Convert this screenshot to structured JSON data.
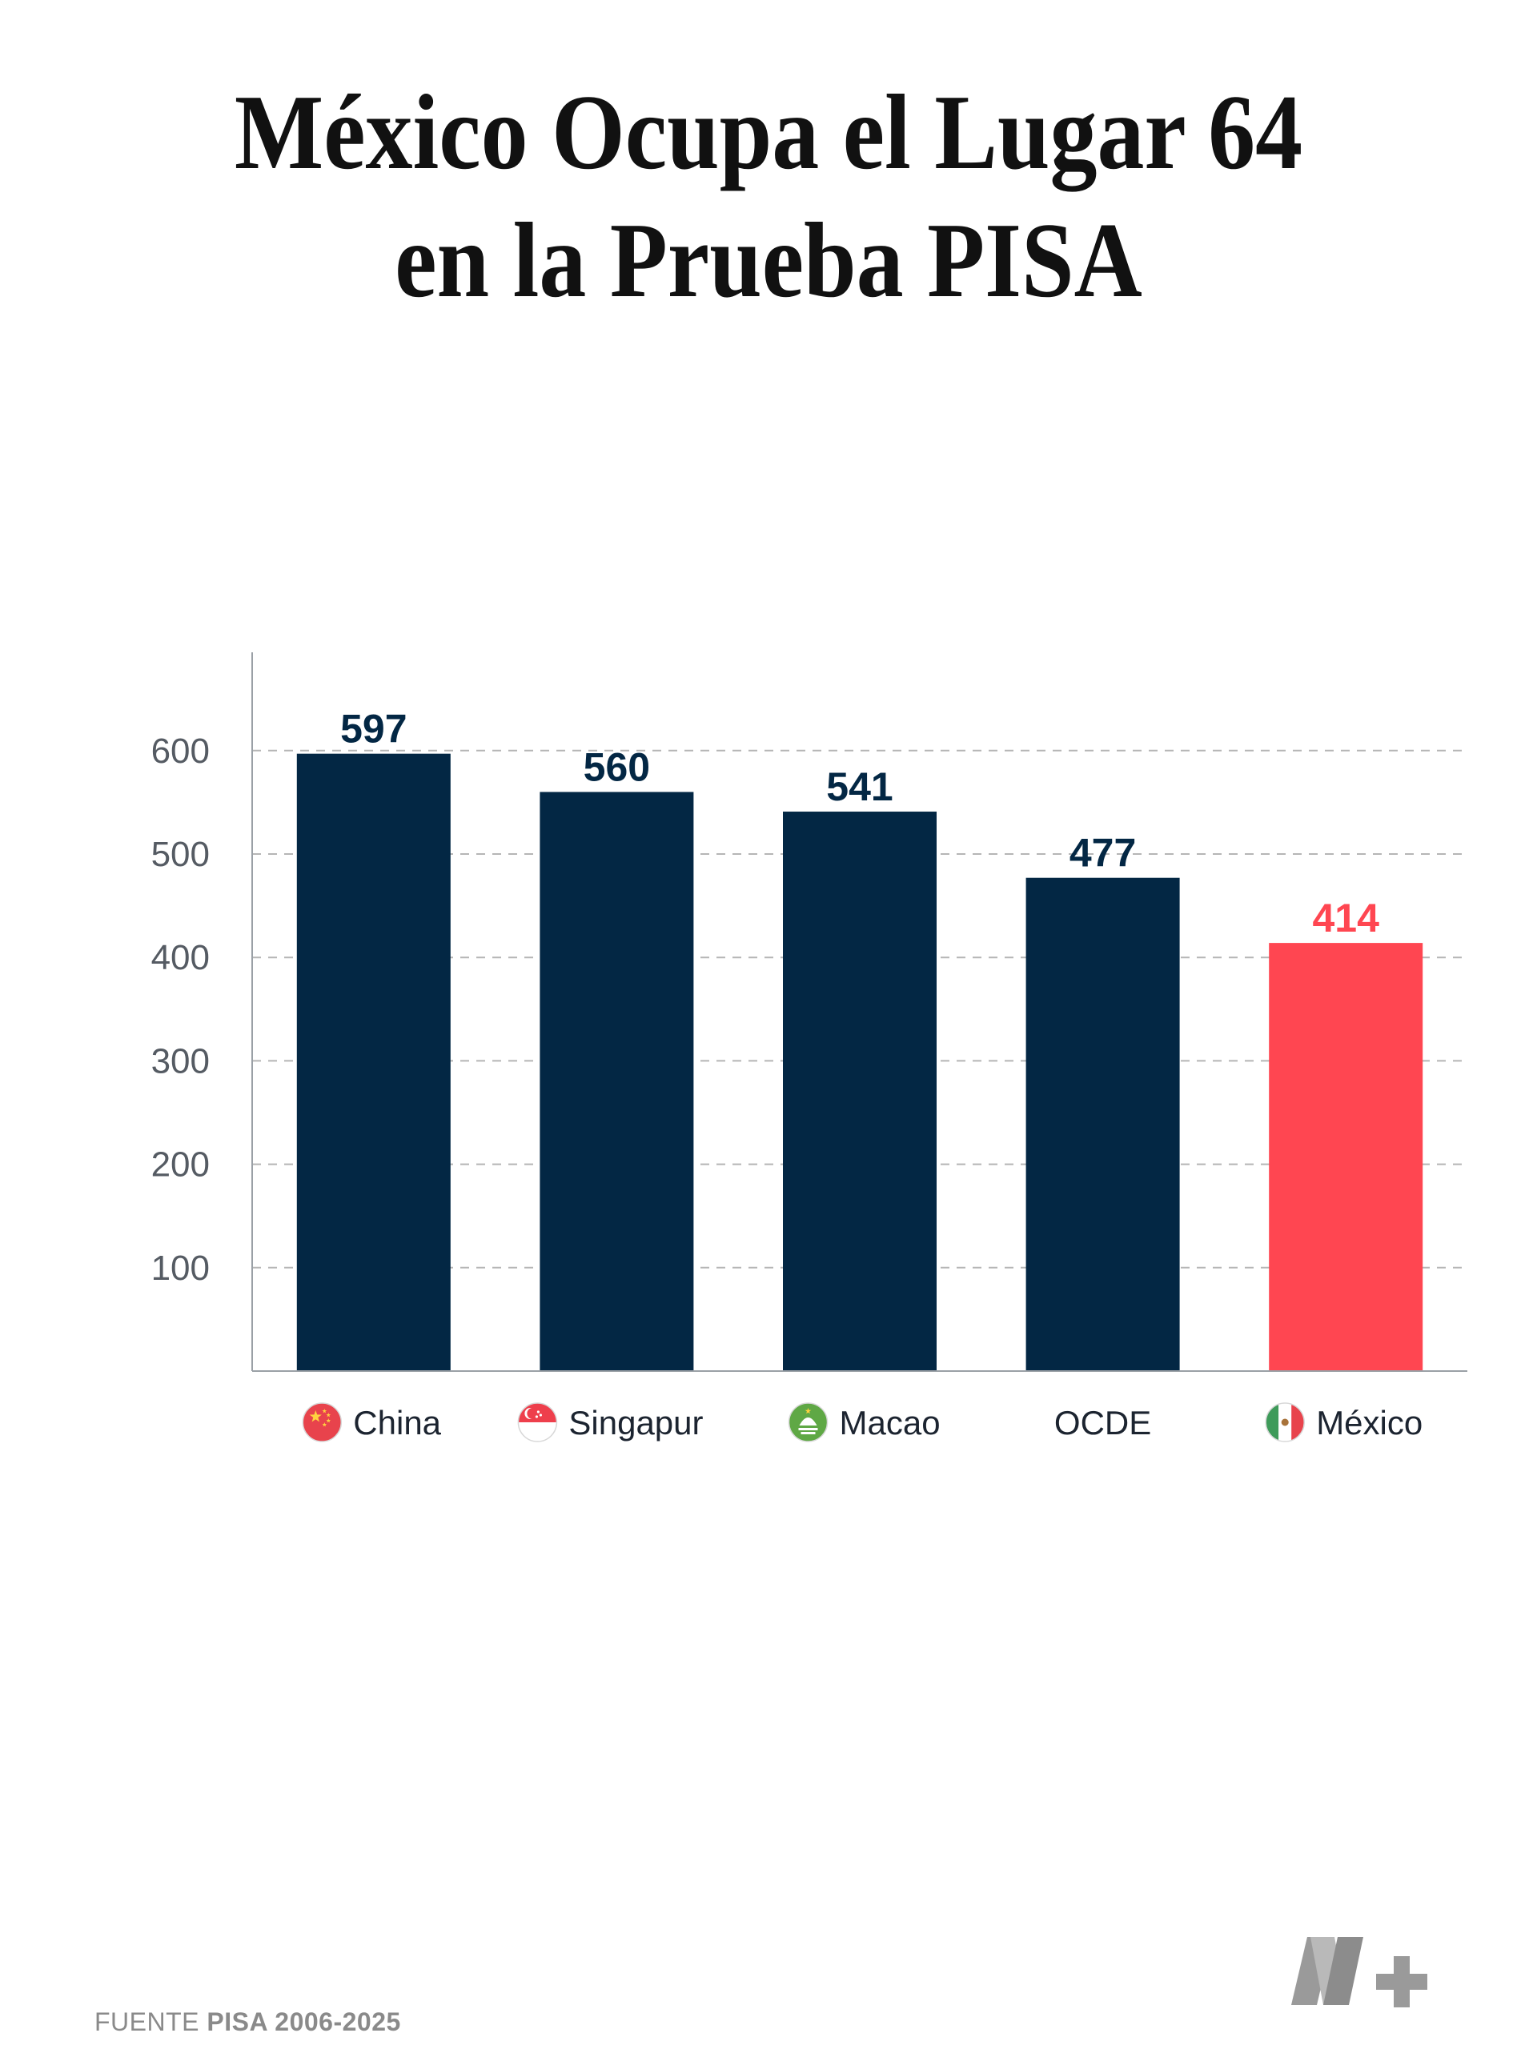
{
  "title": {
    "line1": "México Ocupa el Lugar 64",
    "line2": "en la Prueba PISA"
  },
  "source": {
    "prefix": "FUENTE",
    "name": "PISA 2006-2025"
  },
  "logo": {
    "icon": "n-plus-logo",
    "color": "#9a9a9a"
  },
  "colors": {
    "bar": "#032744",
    "highlight": "#ff4651",
    "axis": "#9aa0a6",
    "grid": "#b5b5b5",
    "tick_text": "#555b63"
  },
  "chart_data": {
    "type": "bar",
    "title": "",
    "xlabel": "",
    "ylabel": "",
    "ylim": [
      0,
      700
    ],
    "yticks": [
      100,
      200,
      300,
      400,
      500,
      600
    ],
    "grid": true,
    "categories": [
      "China",
      "Singapur",
      "Macao",
      "OCDE",
      "México"
    ],
    "category_icons": [
      "china-flag-icon",
      "singapore-flag-icon",
      "macao-flag-icon",
      "",
      "mexico-flag-icon"
    ],
    "values": [
      597,
      560,
      541,
      477,
      414
    ],
    "highlight": "México"
  }
}
